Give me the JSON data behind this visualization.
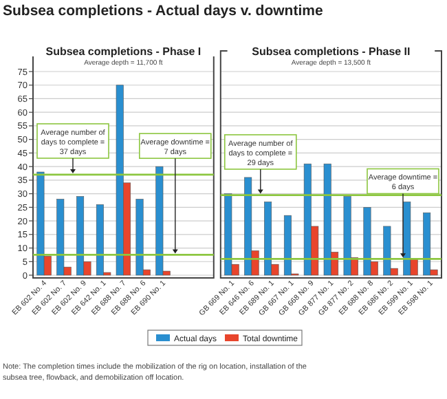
{
  "chart_data": [
    {
      "type": "bar",
      "title": "Subsea completions - Phase I",
      "subtitle": "Average depth = 11,700 ft",
      "annotations": [
        "Subsea completions - Actual days v. downtime"
      ],
      "categories": [
        "EB 602 No. 4",
        "EB 602 No. 7",
        "EB 602 No. 9",
        "EB 642 No. 1",
        "EB 688 No. 7",
        "EB 688 No. 6",
        "EB 690 No. 1",
        null,
        null
      ],
      "series": [
        {
          "name": "Actual days",
          "color": "#2a8fd0",
          "values": [
            38,
            28,
            29,
            26,
            70,
            28,
            40,
            null,
            null
          ]
        },
        {
          "name": "Total downtime",
          "color": "#e8452c",
          "values": [
            7,
            3,
            5,
            1,
            34,
            2,
            1.5,
            null,
            null
          ]
        }
      ],
      "ylim": [
        0,
        75
      ],
      "yticks": [
        0,
        5,
        10,
        15,
        20,
        25,
        30,
        35,
        40,
        45,
        50,
        55,
        60,
        65,
        70,
        75
      ],
      "grid": "y",
      "legend": "bottom",
      "ref_lines": [
        {
          "axis": "y",
          "value": 37,
          "label": "Average number of days to complete = 37 days",
          "color": "#8cc63f"
        },
        {
          "axis": "y",
          "value": 7.5,
          "label": "Average downtime = 7 days",
          "color": "#8cc63f"
        }
      ]
    },
    {
      "type": "bar",
      "title": "Subsea completions - Phase II",
      "subtitle": "Average depth = 13,500 ft",
      "annotations": [
        "Note: The completion times include the mobilization of the rig on location, installation of the subsea tree, flowback, and demobilization off location."
      ],
      "categories": [
        "GB 669 No. 1",
        "EB 646 No. 6",
        "EB 689 No. 1",
        "GB 667 No. 1",
        "GB 668 No. 9",
        "GB 877 No. 1",
        "GB 877 No. 2",
        "EB 688 No. 8",
        "EB 686 No. 2",
        "EB 599 No. 1",
        "EB 598 No. 1"
      ],
      "series": [
        {
          "color": "#2a8fd0",
          "values": [
            30,
            36,
            27,
            22,
            41,
            41,
            29,
            25,
            18,
            27,
            23
          ]
        },
        {
          "color": "#e8452c",
          "values": [
            4,
            9,
            4,
            0.5,
            18,
            8.5,
            6.5,
            5,
            2.5,
            6,
            2
          ]
        }
      ],
      "ylim": [
        0,
        75
      ],
      "yticks": [
        0,
        5,
        10,
        15,
        20,
        25,
        30,
        35,
        40,
        45,
        50,
        55,
        60,
        65,
        70,
        75
      ],
      "grid": "y",
      "tick_labels": "x",
      "ref_lines": [
        {
          "axis": "y",
          "value": 29.5,
          "label": "Average number of days to complete = 29 days",
          "color": "#8cc63f"
        },
        {
          "axis": "y",
          "value": 6,
          "label": "Average downtime = 6 days",
          "color": "#8cc63f"
        }
      ]
    }
  ]
}
